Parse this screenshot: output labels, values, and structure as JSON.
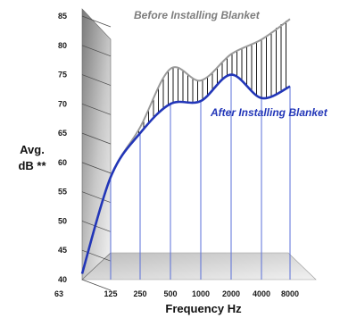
{
  "chart_data": {
    "type": "line",
    "x": [
      "63",
      "125",
      "250",
      "500",
      "1000",
      "2000",
      "4000",
      "8000"
    ],
    "xlabel": "Frequency Hz",
    "ylabel_lines": [
      "Avg.",
      "dB **"
    ],
    "ylim": [
      40,
      85
    ],
    "yticks": [
      40,
      45,
      50,
      55,
      60,
      65,
      70,
      75,
      80,
      85
    ],
    "series": [
      {
        "name": "Before Installing Blanket",
        "values": [
          41,
          57.5,
          66,
          76,
          74,
          78.5,
          81,
          84.5
        ]
      },
      {
        "name": "After Installing Blanket",
        "values": [
          41,
          57.5,
          65,
          70,
          70.5,
          75,
          71,
          73
        ]
      }
    ],
    "colors": {
      "before": "#9a9a9a",
      "after": "#2236b8",
      "hatch": "#1a1a1a",
      "back_wall": "#8e8e8e",
      "floor": "#d4d4d4",
      "gridline": "#5a6fd8"
    },
    "grid": true
  }
}
